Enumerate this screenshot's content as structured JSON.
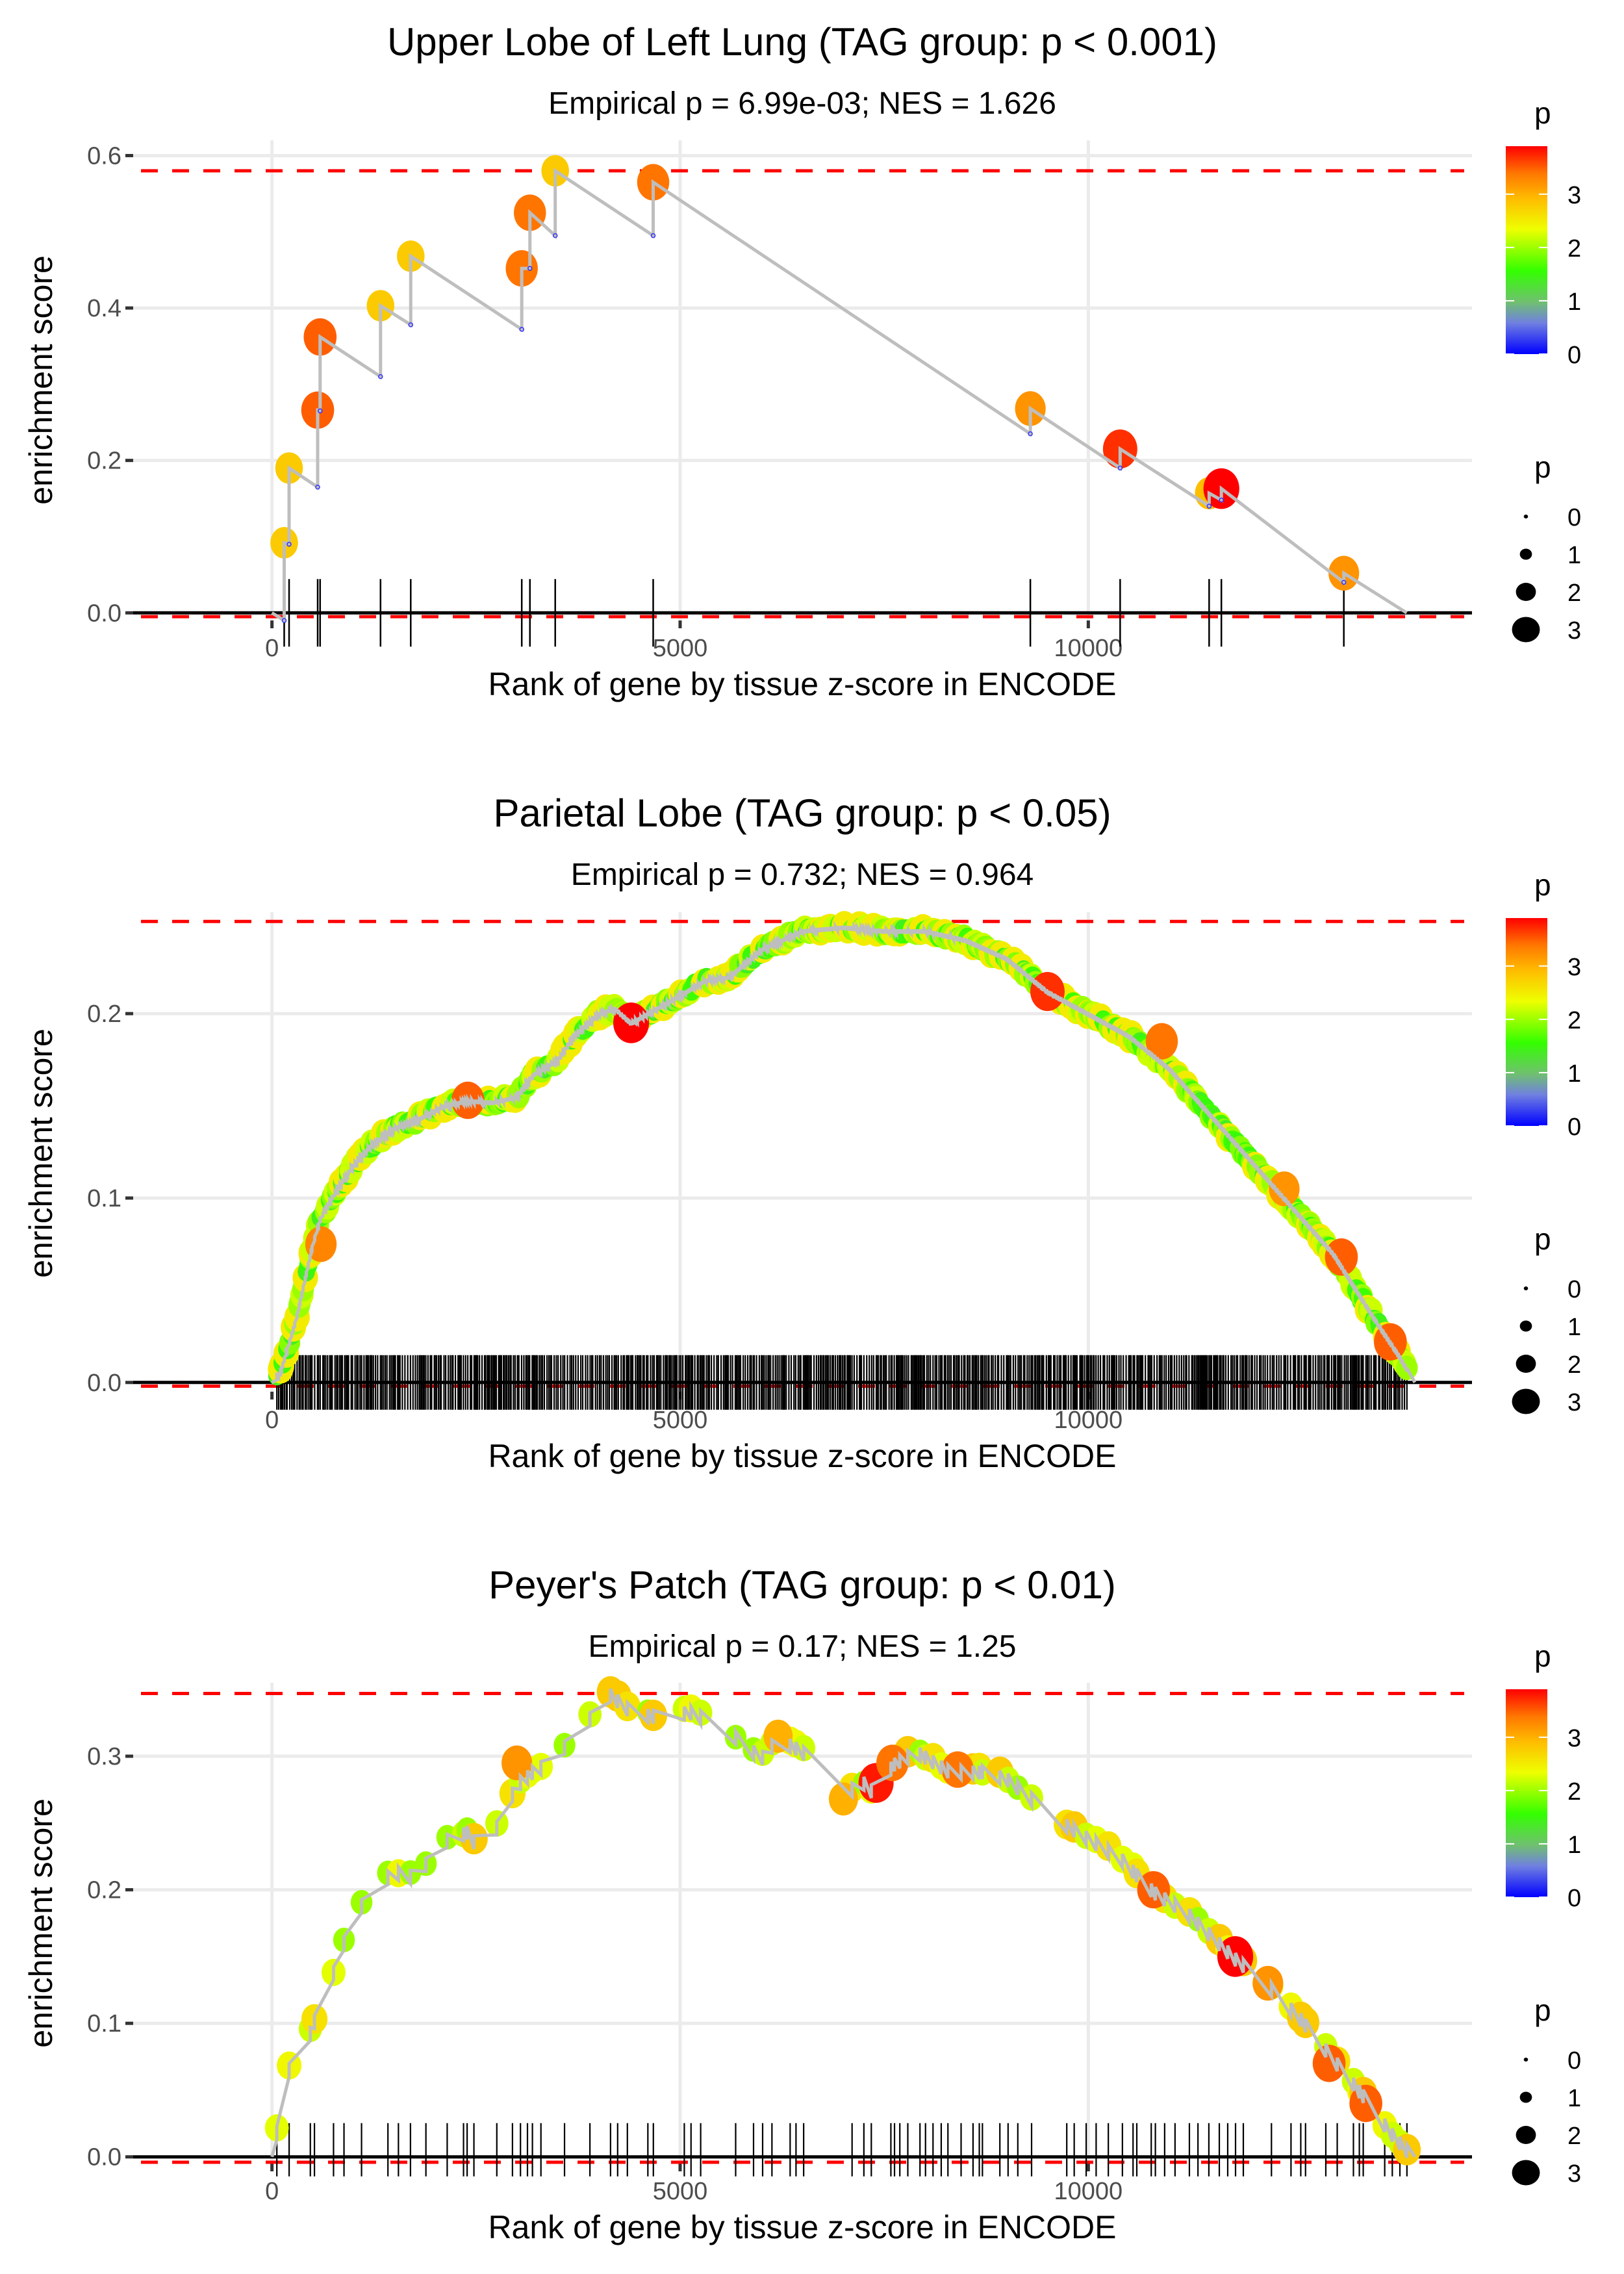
{
  "chart_data": [
    {
      "type": "line",
      "title": "Upper Lobe of Left Lung (TAG group: p < 0.001)",
      "subtitle": "Empirical p = 6.99e-03; NES = 1.626",
      "xlabel": "Rank of gene by tissue z-score in ENCODE",
      "ylabel": "enrichment score",
      "xlim": [
        -1700,
        14700
      ],
      "ylim": [
        -0.01,
        0.62
      ],
      "xticks": [
        0,
        5000,
        10000
      ],
      "xtick_labels": [
        "0",
        "5000",
        "10000"
      ],
      "yticks": [
        0.0,
        0.2,
        0.4,
        0.6
      ],
      "ytick_labels": [
        "0.0",
        "0.2",
        "0.4",
        "0.6"
      ],
      "grid": true,
      "max_es_line": 0.58,
      "min_es_line": -0.005,
      "x_end": 13900,
      "hits": [
        {
          "x": 150,
          "before": -0.01,
          "es": 0.092,
          "p": 2.8
        },
        {
          "x": 210,
          "before": 0.09,
          "es": 0.19,
          "p": 2.8
        },
        {
          "x": 560,
          "before": 0.165,
          "es": 0.266,
          "p": 3.5
        },
        {
          "x": 590,
          "before": 0.265,
          "es": 0.362,
          "p": 3.5
        },
        {
          "x": 1330,
          "before": 0.31,
          "es": 0.403,
          "p": 2.8
        },
        {
          "x": 1700,
          "before": 0.378,
          "es": 0.468,
          "p": 2.8
        },
        {
          "x": 3060,
          "before": 0.372,
          "es": 0.452,
          "p": 3.4
        },
        {
          "x": 3160,
          "before": 0.452,
          "es": 0.525,
          "p": 3.4
        },
        {
          "x": 3470,
          "before": 0.495,
          "es": 0.58,
          "p": 2.8
        },
        {
          "x": 4670,
          "before": 0.495,
          "es": 0.565,
          "p": 3.4
        },
        {
          "x": 9290,
          "before": 0.235,
          "es": 0.268,
          "p": 3.2
        },
        {
          "x": 10390,
          "before": 0.19,
          "es": 0.215,
          "p": 3.7
        },
        {
          "x": 11480,
          "before": 0.14,
          "es": 0.157,
          "p": 2.9
        },
        {
          "x": 11630,
          "before": 0.148,
          "es": 0.163,
          "p": 3.9
        },
        {
          "x": 13130,
          "before": 0.04,
          "es": 0.052,
          "p": 3.2
        }
      ]
    },
    {
      "type": "line",
      "title": "Parietal Lobe (TAG group: p < 0.05)",
      "subtitle": "Empirical p = 0.732; NES = 0.964",
      "xlabel": "Rank of gene by tissue z-score in ENCODE",
      "ylabel": "enrichment score",
      "xlim": [
        -1700,
        14700
      ],
      "ylim": [
        -0.005,
        0.255
      ],
      "xticks": [
        0,
        5000,
        10000
      ],
      "xtick_labels": [
        "0",
        "5000",
        "10000"
      ],
      "yticks": [
        0.0,
        0.1,
        0.2
      ],
      "ytick_labels": [
        "0.0",
        "0.1",
        "0.2"
      ],
      "grid": true,
      "max_es_line": 0.25,
      "min_es_line": -0.002,
      "x_end": 14000,
      "curve": [
        [
          0,
          0.0
        ],
        [
          100,
          0.005
        ],
        [
          200,
          0.02
        ],
        [
          300,
          0.035
        ],
        [
          400,
          0.055
        ],
        [
          500,
          0.075
        ],
        [
          600,
          0.09
        ],
        [
          800,
          0.105
        ],
        [
          1000,
          0.118
        ],
        [
          1200,
          0.128
        ],
        [
          1500,
          0.138
        ],
        [
          1800,
          0.143
        ],
        [
          2100,
          0.15
        ],
        [
          2400,
          0.153
        ],
        [
          2700,
          0.152
        ],
        [
          3000,
          0.155
        ],
        [
          3200,
          0.167
        ],
        [
          3500,
          0.175
        ],
        [
          3700,
          0.188
        ],
        [
          4000,
          0.2
        ],
        [
          4200,
          0.203
        ],
        [
          4400,
          0.195
        ],
        [
          4600,
          0.2
        ],
        [
          5000,
          0.21
        ],
        [
          5300,
          0.218
        ],
        [
          5600,
          0.22
        ],
        [
          6000,
          0.235
        ],
        [
          6500,
          0.245
        ],
        [
          7000,
          0.247
        ],
        [
          7500,
          0.245
        ],
        [
          8000,
          0.245
        ],
        [
          8500,
          0.24
        ],
        [
          9000,
          0.23
        ],
        [
          9500,
          0.212
        ],
        [
          10000,
          0.2
        ],
        [
          10500,
          0.188
        ],
        [
          11000,
          0.17
        ],
        [
          11500,
          0.145
        ],
        [
          12000,
          0.12
        ],
        [
          12500,
          0.095
        ],
        [
          13000,
          0.07
        ],
        [
          13500,
          0.035
        ],
        [
          13800,
          0.015
        ],
        [
          14000,
          0.0
        ]
      ],
      "highlights": [
        {
          "x": 600,
          "es": 0.075,
          "p": 3.3
        },
        {
          "x": 2400,
          "es": 0.153,
          "p": 3.5
        },
        {
          "x": 4400,
          "es": 0.195,
          "p": 3.9
        },
        {
          "x": 9500,
          "es": 0.212,
          "p": 3.7
        },
        {
          "x": 10900,
          "es": 0.185,
          "p": 3.4
        },
        {
          "x": 12400,
          "es": 0.105,
          "p": 3.2
        },
        {
          "x": 13100,
          "es": 0.068,
          "p": 3.5
        },
        {
          "x": 13700,
          "es": 0.022,
          "p": 3.5
        }
      ],
      "hit_density": "dense"
    },
    {
      "type": "line",
      "title": "Peyer's Patch (TAG group: p < 0.01)",
      "subtitle": "Empirical p = 0.17; NES = 1.25",
      "xlabel": "Rank of gene by tissue z-score in ENCODE",
      "ylabel": "enrichment score",
      "xlim": [
        -1700,
        14700
      ],
      "ylim": [
        -0.005,
        0.355
      ],
      "xticks": [
        0,
        5000,
        10000
      ],
      "xtick_labels": [
        "0",
        "5000",
        "10000"
      ],
      "yticks": [
        0.0,
        0.1,
        0.2,
        0.3
      ],
      "ytick_labels": [
        "0.0",
        "0.1",
        "0.2",
        "0.3"
      ],
      "grid": true,
      "max_es_line": 0.347,
      "min_es_line": -0.004,
      "x_end": 14000,
      "curve": [
        [
          0,
          0.0
        ],
        [
          60,
          0.02
        ],
        [
          150,
          0.055
        ],
        [
          250,
          0.075
        ],
        [
          400,
          0.08
        ],
        [
          500,
          0.1
        ],
        [
          700,
          0.13
        ],
        [
          900,
          0.165
        ],
        [
          1100,
          0.19
        ],
        [
          1300,
          0.205
        ],
        [
          1500,
          0.215
        ],
        [
          1800,
          0.21
        ],
        [
          2000,
          0.235
        ],
        [
          2400,
          0.245
        ],
        [
          2600,
          0.225
        ],
        [
          2800,
          0.255
        ],
        [
          3000,
          0.28
        ],
        [
          3200,
          0.29
        ],
        [
          3500,
          0.3
        ],
        [
          3700,
          0.32
        ],
        [
          3900,
          0.33
        ],
        [
          4100,
          0.35
        ],
        [
          4400,
          0.335
        ],
        [
          4800,
          0.33
        ],
        [
          5100,
          0.335
        ],
        [
          5500,
          0.325
        ],
        [
          6000,
          0.3
        ],
        [
          6200,
          0.315
        ],
        [
          6500,
          0.305
        ],
        [
          7000,
          0.268
        ],
        [
          7200,
          0.285
        ],
        [
          7400,
          0.272
        ],
        [
          7600,
          0.295
        ],
        [
          7900,
          0.305
        ],
        [
          8300,
          0.29
        ],
        [
          8700,
          0.29
        ],
        [
          9000,
          0.285
        ],
        [
          9300,
          0.27
        ],
        [
          9600,
          0.255
        ],
        [
          10000,
          0.24
        ],
        [
          10400,
          0.225
        ],
        [
          10800,
          0.2
        ],
        [
          11200,
          0.185
        ],
        [
          11800,
          0.15
        ],
        [
          12200,
          0.13
        ],
        [
          12600,
          0.105
        ],
        [
          13000,
          0.075
        ],
        [
          13400,
          0.045
        ],
        [
          13700,
          0.02
        ],
        [
          14000,
          0.0
        ]
      ],
      "highlights": [
        {
          "x": 3000,
          "es": 0.295,
          "p": 3.2
        },
        {
          "x": 6200,
          "es": 0.315,
          "p": 3.0
        },
        {
          "x": 7000,
          "es": 0.268,
          "p": 3.0
        },
        {
          "x": 7400,
          "es": 0.28,
          "p": 3.8
        },
        {
          "x": 7600,
          "es": 0.295,
          "p": 3.4
        },
        {
          "x": 8400,
          "es": 0.29,
          "p": 3.4
        },
        {
          "x": 10800,
          "es": 0.2,
          "p": 3.5
        },
        {
          "x": 11800,
          "es": 0.15,
          "p": 3.9
        },
        {
          "x": 12200,
          "es": 0.13,
          "p": 3.2
        },
        {
          "x": 12950,
          "es": 0.07,
          "p": 3.5
        },
        {
          "x": 13400,
          "es": 0.04,
          "p": 3.5
        }
      ],
      "hit_density": "moderate"
    }
  ],
  "legend": {
    "color_title": "p",
    "color_ticks": [
      "0",
      "1",
      "2",
      "3"
    ],
    "color_max": 3.9,
    "size_title": "p",
    "size_ticks": [
      "0",
      "1",
      "2",
      "3"
    ]
  }
}
